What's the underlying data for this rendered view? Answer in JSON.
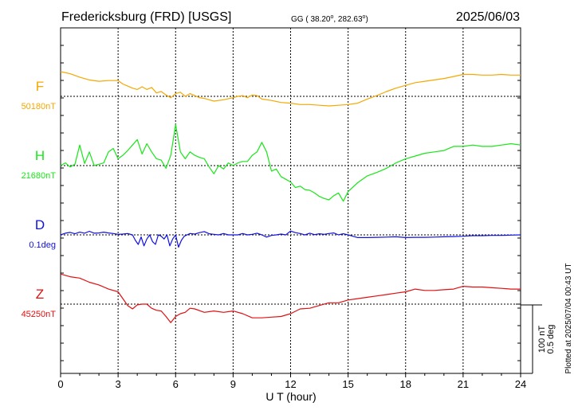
{
  "chart_data": {
    "type": "line",
    "title": "Fredericksburg (FRD)  [USGS]",
    "coords": "GG ( 38.20",
    "coords_lat_unit": "o",
    "coords_mid": ", 282.63",
    "coords_lon_unit": "o",
    "coords_end": ")",
    "date": "2025/06/03",
    "xlabel": "U T (hour)",
    "xlim": [
      0,
      24
    ],
    "x_ticks": [
      "0",
      "3",
      "6",
      "9",
      "12",
      "15",
      "18",
      "21",
      "24"
    ],
    "scale_label_nt": "100 nT",
    "scale_label_deg": "0.5 deg",
    "plotted_note": "Plotted at 2025/07/04 00:43 UT",
    "grid": true,
    "series": [
      {
        "name": "F",
        "baseline_label": "50180nT",
        "color": "#f5a800",
        "baseline_value": 50180,
        "unit": "nT",
        "x": [
          0,
          0.5,
          1,
          1.5,
          2,
          2.5,
          3,
          3.25,
          3.5,
          3.75,
          4,
          4.25,
          4.5,
          4.75,
          5,
          5.25,
          5.5,
          5.75,
          6,
          6.25,
          6.5,
          6.75,
          7,
          7.25,
          7.5,
          7.75,
          8,
          8.5,
          9,
          9.25,
          9.5,
          9.75,
          10,
          10.25,
          10.5,
          11,
          11.5,
          12,
          12.5,
          13,
          13.5,
          14,
          14.5,
          15,
          15.5,
          16,
          16.5,
          17,
          17.5,
          18,
          18.5,
          19,
          19.5,
          20,
          20.5,
          21,
          21.5,
          22,
          22.5,
          23,
          23.5,
          24
        ],
        "y": [
          50216,
          50213,
          50208,
          50204,
          50202,
          50203,
          50203,
          50198,
          50195,
          50192,
          50190,
          50194,
          50190,
          50193,
          50185,
          50187,
          50182,
          50178,
          50184,
          50186,
          50180,
          50184,
          50181,
          50178,
          50177,
          50175,
          50173,
          50175,
          50178,
          50180,
          50181,
          50178,
          50182,
          50181,
          50176,
          50174,
          50171,
          50170,
          50168,
          50168,
          50167,
          50166,
          50167,
          50168,
          50170,
          50176,
          50181,
          50187,
          50192,
          50196,
          50200,
          50202,
          50204,
          50206,
          50209,
          50212,
          50212,
          50211,
          50211,
          50212,
          50211,
          50211
        ]
      },
      {
        "name": "H",
        "baseline_label": "21680nT",
        "color": "#1ae61a",
        "baseline_value": 21680,
        "unit": "nT",
        "x": [
          0,
          0.25,
          0.5,
          0.75,
          1,
          1.25,
          1.5,
          1.75,
          2,
          2.25,
          2.5,
          2.75,
          3,
          3.25,
          3.5,
          3.75,
          4,
          4.25,
          4.5,
          4.75,
          5,
          5.25,
          5.5,
          5.75,
          6,
          6.25,
          6.5,
          6.75,
          7,
          7.25,
          7.5,
          7.75,
          8,
          8.25,
          8.5,
          8.75,
          9,
          9.25,
          9.5,
          9.75,
          10,
          10.25,
          10.5,
          10.75,
          11,
          11.25,
          11.5,
          11.75,
          12,
          12.25,
          12.5,
          12.75,
          13,
          13.25,
          13.5,
          13.75,
          14,
          14.25,
          14.5,
          14.75,
          15,
          15.5,
          16,
          16.5,
          17,
          17.5,
          18,
          18.5,
          19,
          19.5,
          20,
          20.5,
          21,
          21.5,
          22,
          22.5,
          23,
          23.5,
          24
        ],
        "y": [
          21680,
          21684,
          21678,
          21682,
          21710,
          21683,
          21700,
          21680,
          21682,
          21684,
          21700,
          21705,
          21690,
          21695,
          21702,
          21710,
          21718,
          21697,
          21712,
          21700,
          21690,
          21688,
          21676,
          21695,
          21740,
          21700,
          21690,
          21700,
          21695,
          21692,
          21690,
          21678,
          21668,
          21680,
          21675,
          21684,
          21680,
          21684,
          21686,
          21686,
          21695,
          21700,
          21714,
          21700,
          21672,
          21675,
          21664,
          21660,
          21656,
          21648,
          21650,
          21645,
          21644,
          21640,
          21635,
          21632,
          21630,
          21636,
          21640,
          21628,
          21642,
          21655,
          21665,
          21670,
          21676,
          21684,
          21690,
          21694,
          21698,
          21700,
          21702,
          21708,
          21708,
          21710,
          21708,
          21708,
          21710,
          21712,
          21710
        ]
      },
      {
        "name": "D",
        "baseline_label": "0.1deg",
        "color": "#1010e0",
        "baseline_value": 0.1,
        "unit": "deg",
        "x": [
          0,
          0.25,
          0.5,
          0.75,
          1,
          1.25,
          1.5,
          1.75,
          2,
          2.25,
          2.5,
          2.75,
          3,
          3.25,
          3.5,
          3.75,
          3.9,
          4.05,
          4.2,
          4.35,
          4.5,
          4.65,
          4.8,
          4.95,
          5.1,
          5.25,
          5.4,
          5.55,
          5.7,
          5.85,
          6,
          6.15,
          6.3,
          6.45,
          6.6,
          6.75,
          7,
          7.25,
          7.5,
          7.75,
          8,
          8.25,
          8.5,
          8.75,
          9,
          9.25,
          9.5,
          9.75,
          10,
          10.25,
          10.5,
          10.75,
          11,
          11.25,
          11.5,
          11.75,
          12,
          12.25,
          12.5,
          12.75,
          13,
          13.25,
          13.5,
          13.75,
          14,
          14.25,
          14.5,
          14.75,
          15,
          15.25,
          15.5,
          16,
          16.5,
          17,
          17.5,
          18,
          18.5,
          19,
          19.5,
          20,
          20.5,
          21,
          21.5,
          22,
          22.5,
          23,
          23.5,
          24
        ],
        "y": [
          0.1,
          0.112,
          0.118,
          0.108,
          0.12,
          0.112,
          0.126,
          0.112,
          0.114,
          0.12,
          0.114,
          0.11,
          0.104,
          0.106,
          0.11,
          0.1,
          0.06,
          0.03,
          0.085,
          0.02,
          0.07,
          0.1,
          0.05,
          0.03,
          0.1,
          0.09,
          0.07,
          0.1,
          0.02,
          0.07,
          0.1,
          0.01,
          0.06,
          0.09,
          0.1,
          0.11,
          0.106,
          0.116,
          0.124,
          0.108,
          0.104,
          0.1,
          0.11,
          0.1,
          0.1,
          0.1,
          0.11,
          0.1,
          0.104,
          0.112,
          0.1,
          0.084,
          0.096,
          0.1,
          0.106,
          0.1,
          0.128,
          0.116,
          0.11,
          0.1,
          0.112,
          0.102,
          0.108,
          0.104,
          0.11,
          0.114,
          0.1,
          0.108,
          0.1,
          0.09,
          0.08,
          0.08,
          0.082,
          0.084,
          0.086,
          0.08,
          0.082,
          0.082,
          0.084,
          0.086,
          0.088,
          0.09,
          0.094,
          0.094,
          0.096,
          0.096,
          0.098,
          0.1
        ]
      },
      {
        "name": "Z",
        "baseline_label": "45250nT",
        "color": "#e01010",
        "baseline_value": 45250,
        "unit": "nT",
        "x": [
          0,
          0.5,
          1,
          1.5,
          2,
          2.5,
          3,
          3.25,
          3.5,
          3.75,
          4,
          4.25,
          4.5,
          4.75,
          5,
          5.25,
          5.5,
          5.75,
          6,
          6.25,
          6.5,
          6.75,
          7,
          7.5,
          8,
          8.5,
          9,
          9.5,
          10,
          10.5,
          11,
          11.5,
          12,
          12.5,
          13,
          13.5,
          14,
          14.5,
          15,
          15.5,
          16,
          16.5,
          17,
          17.5,
          18,
          18.5,
          19,
          19.5,
          20,
          20.5,
          21,
          21.5,
          22,
          22.5,
          23,
          23.5,
          24
        ],
        "y": [
          45294,
          45290,
          45288,
          45282,
          45278,
          45272,
          45268,
          45258,
          45248,
          45243,
          45249,
          45250,
          45250,
          45244,
          45241,
          45240,
          45232,
          45223,
          45232,
          45236,
          45238,
          45244,
          45243,
          45238,
          45240,
          45238,
          45240,
          45236,
          45230,
          45230,
          45231,
          45232,
          45236,
          45243,
          45244,
          45248,
          45252,
          45252,
          45256,
          45258,
          45260,
          45262,
          45264,
          45266,
          45268,
          45272,
          45270,
          45270,
          45271,
          45272,
          45276,
          45275,
          45275,
          45274,
          45273,
          45272,
          45272
        ]
      }
    ]
  }
}
